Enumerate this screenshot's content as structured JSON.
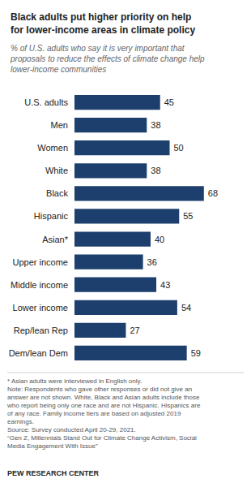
{
  "chart_data": {
    "type": "bar",
    "title": "Black adults put higher priority on help\nfor lower-income areas in climate policy",
    "subtitle": "% of U.S. adults who say it is very important that\nproposals to reduce the effects of climate change help\nlower-income communities",
    "categories": [
      "U.S. adults",
      "Men",
      "Women",
      "White",
      "Black",
      "Hispanic",
      "Asian*",
      "Upper income",
      "Middle income",
      "Lower income",
      "Rep/lean Rep",
      "Dem/lean Dem"
    ],
    "values": [
      45,
      38,
      50,
      38,
      68,
      55,
      40,
      36,
      43,
      54,
      27,
      59
    ],
    "color": "#1c3f6e",
    "orientation": "horizontal",
    "xlim": [
      0,
      80
    ],
    "data_labels": true,
    "tick_labels": "y",
    "grid": false,
    "annotations": [
      "* Asian adults were interviewed in English only.",
      "Note: Respondents who gave other responses or did not give an\nanswer are not shown. White, Black and Asian adults include those\nwho report being only one race and are not Hispanic. Hispanics are\nof any race. Family income tiers are based on adjusted 2019\nearnings.\nSource: Survey conducted April 20-29, 2021.\n“Gen Z, Millennials Stand Out for Climate Change Activism, Social\nMedia Engagement With Issue”",
      "PEW RESEARCH CENTER"
    ]
  }
}
